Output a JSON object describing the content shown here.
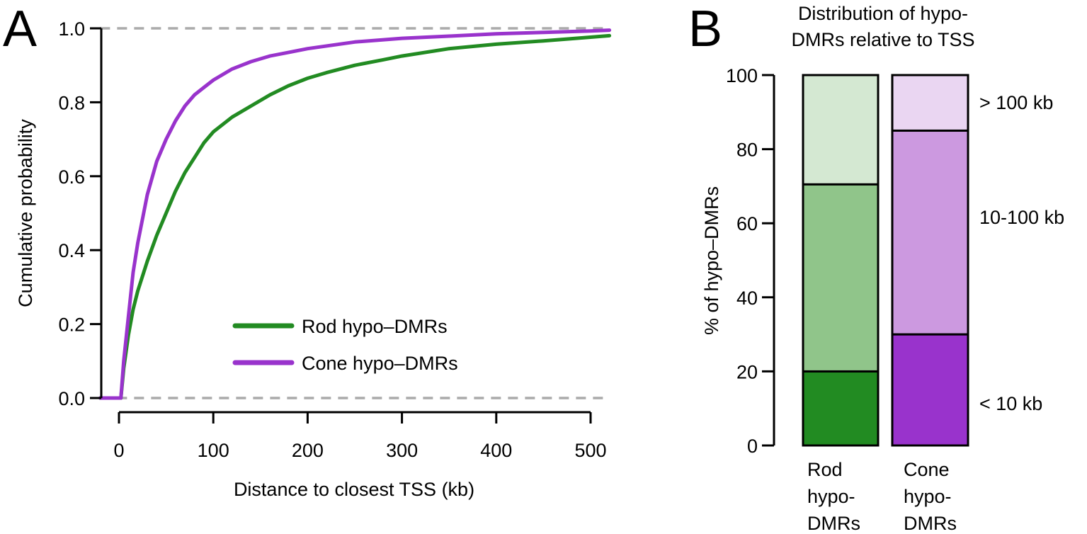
{
  "panel_a_letter": "A",
  "panel_b_letter": "B",
  "chart_data": [
    {
      "type": "line",
      "panel": "A",
      "title": "",
      "xlabel": "Distance to closest TSS (kb)",
      "ylabel": "Cumulative probability",
      "xlim": [
        -20,
        520
      ],
      "ylim": [
        0,
        1
      ],
      "xticks": [
        0,
        100,
        200,
        300,
        400,
        500
      ],
      "yticks": [
        "0.0",
        "0.2",
        "0.4",
        "0.6",
        "0.8",
        "1.0"
      ],
      "reference_lines": [
        0.0,
        1.0
      ],
      "series": [
        {
          "name": "Rod hypo–DMRs",
          "color": "#228B22",
          "x": [
            -20,
            2,
            5,
            10,
            15,
            20,
            30,
            40,
            50,
            60,
            70,
            80,
            90,
            100,
            120,
            140,
            160,
            180,
            200,
            220,
            250,
            280,
            300,
            350,
            400,
            450,
            500,
            520
          ],
          "y": [
            0.0,
            0.0,
            0.08,
            0.17,
            0.24,
            0.29,
            0.37,
            0.44,
            0.5,
            0.56,
            0.61,
            0.65,
            0.69,
            0.72,
            0.76,
            0.79,
            0.82,
            0.845,
            0.865,
            0.88,
            0.9,
            0.915,
            0.925,
            0.945,
            0.957,
            0.966,
            0.976,
            0.98
          ]
        },
        {
          "name": "Cone hypo–DMRs",
          "color": "#9933CC",
          "x": [
            -20,
            2,
            5,
            10,
            15,
            20,
            30,
            40,
            50,
            60,
            70,
            80,
            90,
            100,
            120,
            140,
            160,
            180,
            200,
            250,
            300,
            350,
            400,
            450,
            500,
            520
          ],
          "y": [
            0.0,
            0.0,
            0.1,
            0.22,
            0.34,
            0.42,
            0.55,
            0.64,
            0.7,
            0.75,
            0.79,
            0.82,
            0.84,
            0.86,
            0.89,
            0.91,
            0.925,
            0.935,
            0.945,
            0.963,
            0.973,
            0.979,
            0.985,
            0.989,
            0.993,
            0.995
          ]
        }
      ]
    },
    {
      "type": "bar",
      "panel": "B",
      "stacked": true,
      "title": "Distribution of hypo-\nDMRs relative to TSS",
      "title_lines": [
        "Distribution of hypo-",
        "DMRs relative to TSS"
      ],
      "ylabel": "% of hypo–DMRs",
      "ylim": [
        0,
        100
      ],
      "yticks": [
        0,
        20,
        40,
        60,
        80,
        100
      ],
      "categories": [
        "Rod\nhypo-\nDMRs",
        "Cone\nhypo-\nDMRs"
      ],
      "category_lines": [
        [
          "Rod",
          "hypo-",
          "DMRs"
        ],
        [
          "Cone",
          "hypo-",
          "DMRs"
        ]
      ],
      "segment_labels": [
        "< 10 kb",
        "10-100 kb",
        "> 100 kb"
      ],
      "series": [
        {
          "name": "< 10 kb",
          "values": [
            20,
            30
          ],
          "colors": [
            "#228B22",
            "#9933CC"
          ]
        },
        {
          "name": "10-100 kb",
          "values": [
            50.5,
            55
          ],
          "colors": [
            "#90C58A",
            "#CC99E0"
          ]
        },
        {
          "name": "> 100 kb",
          "values": [
            29.5,
            15
          ],
          "colors": [
            "#D4E8D2",
            "#EAD6F2"
          ]
        }
      ]
    }
  ]
}
